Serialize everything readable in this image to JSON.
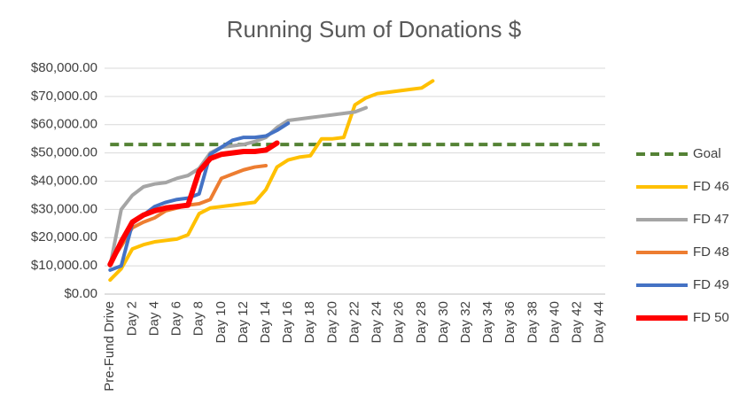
{
  "chart_data": {
    "type": "line",
    "title": "Running Sum of Donations $",
    "categories": [
      "Pre-Fund Drive",
      null,
      "Day 2",
      null,
      "Day 4",
      null,
      "Day 6",
      null,
      "Day 8",
      null,
      "Day 10",
      null,
      "Day 12",
      null,
      "Day 14",
      null,
      "Day 16",
      null,
      "Day 18",
      null,
      "Day 20",
      null,
      "Day 22",
      null,
      "Day 24",
      null,
      "Day 26",
      null,
      "Day 28",
      null,
      "Day 30",
      null,
      "Day 32",
      null,
      "Day 34",
      null,
      "Day 36",
      null,
      "Day 38",
      null,
      "Day 40",
      null,
      "Day 42",
      null,
      "Day 44"
    ],
    "ylim": [
      0,
      80000
    ],
    "yticks": [
      {
        "value": 0,
        "label": "$0.00"
      },
      {
        "value": 10000,
        "label": "$10,000.00"
      },
      {
        "value": 20000,
        "label": "$20,000.00"
      },
      {
        "value": 30000,
        "label": "$30,000.00"
      },
      {
        "value": 40000,
        "label": "$40,000.00"
      },
      {
        "value": 50000,
        "label": "$50,000.00"
      },
      {
        "value": 60000,
        "label": "$60,000.00"
      },
      {
        "value": 70000,
        "label": "$70,000.00"
      },
      {
        "value": 80000,
        "label": "$80,000.00"
      }
    ],
    "grid": true,
    "legend": "right",
    "series": [
      {
        "name": "Goal",
        "color": "#548235",
        "dashed": true,
        "line_width": 4,
        "values": [
          53000,
          53000,
          53000,
          53000,
          53000,
          53000,
          53000,
          53000,
          53000,
          53000,
          53000,
          53000,
          53000,
          53000,
          53000,
          53000,
          53000,
          53000,
          53000,
          53000,
          53000,
          53000,
          53000,
          53000,
          53000,
          53000,
          53000,
          53000,
          53000,
          53000,
          53000,
          53000,
          53000,
          53000,
          53000,
          53000,
          53000,
          53000,
          53000,
          53000,
          53000,
          53000,
          53000,
          53000,
          53000
        ]
      },
      {
        "name": "FD 46",
        "color": "#ffc000",
        "line_width": 4,
        "values": [
          5000,
          9000,
          16000,
          17500,
          18500,
          19000,
          19500,
          21000,
          28500,
          30500,
          31000,
          31500,
          32000,
          32500,
          37000,
          45000,
          47500,
          48500,
          49000,
          55000,
          55000,
          55500,
          67000,
          69500,
          71000,
          71500,
          72000,
          72500,
          73000,
          75500,
          null,
          null,
          null,
          null,
          null,
          null,
          null,
          null,
          null,
          null,
          null,
          null,
          null,
          null,
          null
        ]
      },
      {
        "name": "FD 47",
        "color": "#a5a5a5",
        "line_width": 4,
        "values": [
          10000,
          30000,
          35000,
          38000,
          39000,
          39500,
          41000,
          42000,
          44500,
          50000,
          52000,
          52500,
          53000,
          54000,
          55500,
          59000,
          61500,
          62000,
          62500,
          63000,
          63500,
          64000,
          64500,
          66000,
          null,
          null,
          null,
          null,
          null,
          null,
          null,
          null,
          null,
          null,
          null,
          null,
          null,
          null,
          null,
          null,
          null,
          null,
          null,
          null,
          null
        ]
      },
      {
        "name": "FD 48",
        "color": "#ed7d31",
        "line_width": 4,
        "values": [
          11000,
          17000,
          23500,
          25500,
          27000,
          29500,
          30500,
          31500,
          32000,
          33500,
          41000,
          42500,
          44000,
          45000,
          45500,
          null,
          null,
          null,
          null,
          null,
          null,
          null,
          null,
          null,
          null,
          null,
          null,
          null,
          null,
          null,
          null,
          null,
          null,
          null,
          null,
          null,
          null,
          null,
          null,
          null,
          null,
          null,
          null,
          null,
          null
        ]
      },
      {
        "name": "FD 49",
        "color": "#4472c4",
        "line_width": 4,
        "values": [
          8500,
          10000,
          25000,
          28000,
          31000,
          32500,
          33500,
          34000,
          35500,
          49500,
          52000,
          54500,
          55500,
          55500,
          56000,
          58000,
          60500,
          null,
          null,
          null,
          null,
          null,
          null,
          null,
          null,
          null,
          null,
          null,
          null,
          null,
          null,
          null,
          null,
          null,
          null,
          null,
          null,
          null,
          null,
          null,
          null,
          null,
          null,
          null,
          null
        ]
      },
      {
        "name": "FD 50",
        "color": "#ff0000",
        "line_width": 6,
        "values": [
          10500,
          18500,
          25500,
          28000,
          29500,
          30500,
          31000,
          31500,
          43500,
          48000,
          49500,
          50000,
          50500,
          50500,
          51000,
          53500,
          null,
          null,
          null,
          null,
          null,
          null,
          null,
          null,
          null,
          null,
          null,
          null,
          null,
          null,
          null,
          null,
          null,
          null,
          null,
          null,
          null,
          null,
          null,
          null,
          null,
          null,
          null,
          null,
          null
        ]
      }
    ]
  }
}
